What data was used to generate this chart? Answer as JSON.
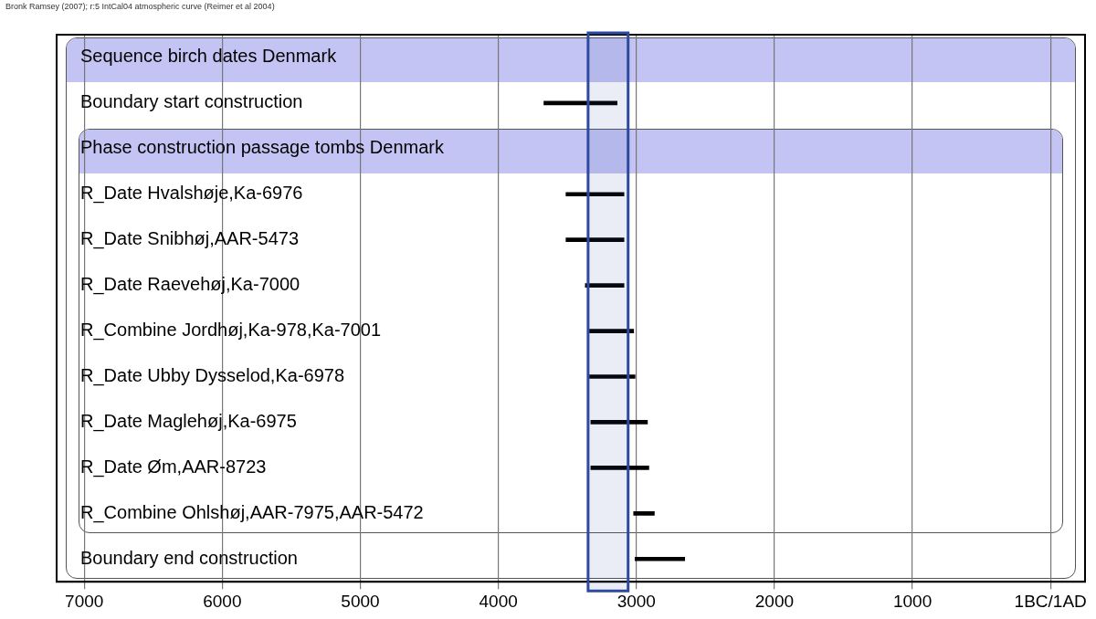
{
  "chart_data": {
    "type": "bar",
    "orientation": "horizontal",
    "annotations": [
      "Bronk Ramsey (2007); r:5 IntCal04 atmospheric curve (Reimer et al 2004)"
    ],
    "categories": [
      "Sequence birch dates Denmark",
      "Boundary start construction",
      "Phase construction passage tombs Denmark",
      "R_Date Hvalshøje,Ka-6976",
      "R_Date Snibhøj,AAR-5473",
      "R_Date Raevehøj,Ka-7000",
      "R_Combine Jordhøj,Ka-978,Ka-7001",
      "R_Date Ubby Dysselod,Ka-6978",
      "R_Date Maglehøj,Ka-6975",
      "R_Date Øm,AAR-8723",
      "R_Combine Ohlshøj,AAR-7975,AAR-5472",
      "Boundary end construction"
    ],
    "base": [
      null,
      3670,
      null,
      3510,
      3510,
      3370,
      3340,
      3340,
      3330,
      3330,
      3020,
      3010
    ],
    "values": [
      null,
      -530,
      null,
      -420,
      -420,
      -280,
      -320,
      -330,
      -410,
      -420,
      -150,
      -360
    ],
    "color": "#000000",
    "xlim": [
      7200,
      -250
    ],
    "xticks": [
      7000,
      6000,
      5000,
      4000,
      3000,
      2000,
      1000,
      {
        "value": 0,
        "label": "1BC/1AD"
      }
    ],
    "grid": "x",
    "bands": [
      {
        "axis": "x",
        "from": 3350,
        "to": 3060,
        "color": "#2e4a9e"
      }
    ]
  }
}
